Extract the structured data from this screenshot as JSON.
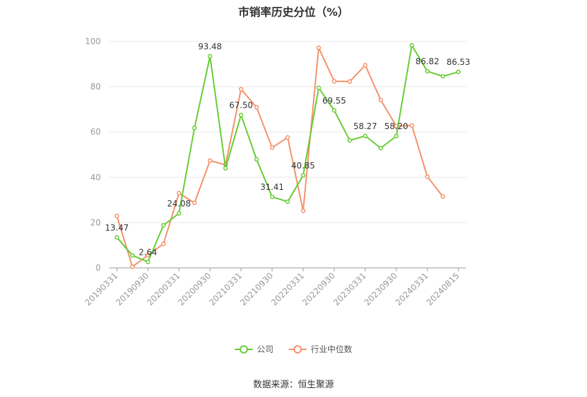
{
  "title": "市销率历史分位（%）",
  "source": "数据来源：恒生聚源",
  "colors": {
    "company": "#66cc33",
    "industry": "#f4916a",
    "axis": "#999999",
    "grid": "#e8e8e8",
    "label": "#333333"
  },
  "legend": [
    {
      "name": "公司",
      "color": "#66cc33"
    },
    {
      "name": "行业中位数",
      "color": "#f4916a"
    }
  ],
  "chart_data": {
    "type": "line",
    "title": "市销率历史分位（%）",
    "x": [
      "20190331",
      "20190630",
      "20190930",
      "20191231",
      "20200331",
      "20200630",
      "20200930",
      "20201231",
      "20210331",
      "20210630",
      "20210930",
      "20211231",
      "20220331",
      "20220630",
      "20220930",
      "20221231",
      "20230331",
      "20230630",
      "20230930",
      "20231231",
      "20240331",
      "20240630",
      "20240815"
    ],
    "x_tick_labels": [
      "20190331",
      "20190930",
      "20200331",
      "20200930",
      "20210331",
      "20210930",
      "20220331",
      "20220930",
      "20230331",
      "20230930",
      "20240331",
      "20240815"
    ],
    "ylim": [
      0,
      100
    ],
    "y_ticks": [
      0,
      20,
      40,
      60,
      80,
      100
    ],
    "grid": true,
    "legend_position": "bottom",
    "series": [
      {
        "name": "公司",
        "values": [
          13.47,
          5.5,
          2.64,
          18.8,
          24.08,
          61.8,
          93.48,
          44.0,
          67.5,
          47.9,
          31.41,
          29.2,
          40.85,
          79.5,
          69.55,
          56.3,
          58.27,
          52.9,
          58.2,
          98.3,
          86.82,
          84.6,
          86.53
        ],
        "data_labels": [
          {
            "index": 0,
            "text": "13.47"
          },
          {
            "index": 2,
            "text": "2.64"
          },
          {
            "index": 4,
            "text": "24.08"
          },
          {
            "index": 6,
            "text": "93.48"
          },
          {
            "index": 8,
            "text": "67.50"
          },
          {
            "index": 10,
            "text": "31.41"
          },
          {
            "index": 12,
            "text": "40.85"
          },
          {
            "index": 14,
            "text": "69.55"
          },
          {
            "index": 16,
            "text": "58.27"
          },
          {
            "index": 18,
            "text": "58.20"
          },
          {
            "index": 20,
            "text": "86.82"
          },
          {
            "index": 22,
            "text": "86.53"
          }
        ]
      },
      {
        "name": "行业中位数",
        "values": [
          22.9,
          0.5,
          5.6,
          10.6,
          33.0,
          28.7,
          47.4,
          45.5,
          78.9,
          70.9,
          53.1,
          57.6,
          25.2,
          97.2,
          82.4,
          82.3,
          89.5,
          74.1,
          62.6,
          62.9,
          40.3,
          31.5,
          null
        ]
      }
    ]
  }
}
